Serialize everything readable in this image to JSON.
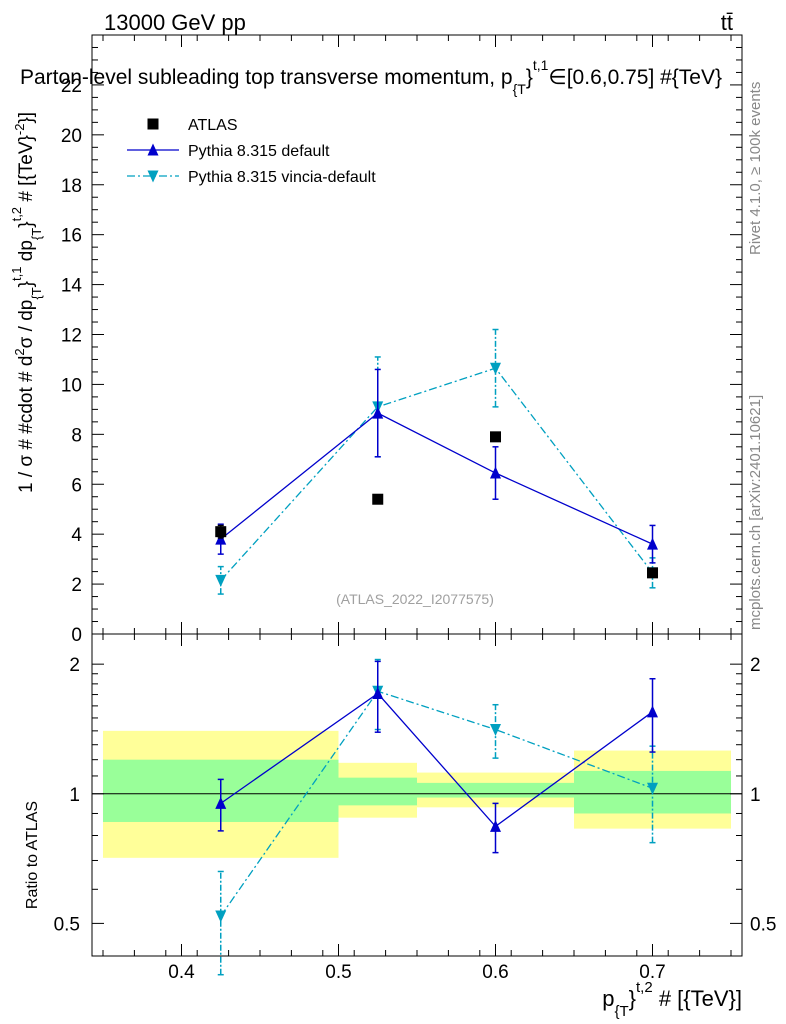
{
  "header": {
    "energy_label": "13000 GeV pp",
    "process_label": "tt̄"
  },
  "side_labels": {
    "rivet": "Rivet 4.1.0, ≥ 100k events",
    "mcplots": "mcplots.cern.ch [arXiv:2401.10621]"
  },
  "watermark": "(ATLAS_2022_I2077575)",
  "chart_data": [
    {
      "type": "scatter",
      "panel": "main",
      "title": "Parton-level subleading top transverse momentum, p}^{t,1}∈[0.6,0.75] #{TeV}",
      "title_parts": {
        "text": "Parton-level subleading top transverse momentum, p",
        "sub": "{T",
        "brace": "}",
        "sup": "t,1",
        "rest": "∈[0.6,0.75] #{TeV}"
      },
      "ylabel": "1 / σ # #cdot # d²σ / dp_{T}^{t,1} dp_{T}^{t,2} # [{TeV}^{-2}]",
      "ylabel_parts": {
        "a": "1 / σ # #cdot # d",
        "sup1": "2",
        "b": "σ / dp",
        "sub2": "{T",
        "c": "}",
        "sup3": "t,1",
        "d": " dp",
        "sub4": "{T",
        "e": "}",
        "sup5": "t,2",
        "f": " # [{TeV}",
        "sup6": "-2",
        "g": "}]"
      },
      "xlim": [
        0.343,
        0.757
      ],
      "ylim": [
        0,
        24
      ],
      "y_ticks": [
        0,
        2,
        4,
        6,
        8,
        10,
        12,
        14,
        16,
        18,
        20,
        22
      ],
      "y_tick_labels": [
        "0",
        "2",
        "4",
        "6",
        "8",
        "10",
        "12",
        "14",
        "16",
        "18",
        "20",
        "22"
      ],
      "legend": {
        "position": "top-left",
        "entries": [
          "ATLAS",
          "Pythia 8.315 default",
          "Pythia 8.315 vincia-default"
        ]
      },
      "series": [
        {
          "name": "ATLAS",
          "color": "#000000",
          "marker": "square",
          "x": [
            0.425,
            0.525,
            0.6,
            0.7
          ],
          "y": [
            4.1,
            5.4,
            7.9,
            2.45
          ],
          "yerr_low": [
            0.25,
            0.15,
            0.15,
            0.15
          ],
          "yerr_high": [
            0.25,
            0.15,
            0.15,
            0.15
          ]
        },
        {
          "name": "Pythia 8.315 default",
          "color": "#0000cc",
          "marker": "triangle-up",
          "linestyle": "solid",
          "x": [
            0.425,
            0.525,
            0.6,
            0.7
          ],
          "y": [
            3.8,
            8.85,
            6.45,
            3.6
          ],
          "yerr_low": [
            0.6,
            1.75,
            1.05,
            0.75
          ],
          "yerr_high": [
            0.6,
            1.75,
            1.05,
            0.75
          ]
        },
        {
          "name": "Pythia 8.315 vincia-default",
          "color": "#00a0c0",
          "marker": "triangle-down",
          "linestyle": "dashdot",
          "x": [
            0.425,
            0.525,
            0.6,
            0.7
          ],
          "y": [
            2.15,
            9.1,
            10.65,
            2.45
          ],
          "yerr_low": [
            0.55,
            2.0,
            1.55,
            0.6
          ],
          "yerr_high": [
            0.55,
            2.0,
            1.55,
            0.6
          ]
        }
      ]
    },
    {
      "type": "scatter",
      "panel": "ratio",
      "ylabel": "Ratio to ATLAS",
      "xlabel": "p_{T}^{t,2} # [{TeV}]",
      "xlabel_parts": {
        "a": "p",
        "sub": "{T",
        "b": "}",
        "sup": "t,2",
        "c": " # [{TeV}]"
      },
      "xlim": [
        0.343,
        0.757
      ],
      "ylim": [
        0.42,
        2.35
      ],
      "y_scale": "log",
      "y_ticks": [
        0.5,
        1,
        2
      ],
      "y_tick_labels": [
        "0.5",
        "1",
        "2"
      ],
      "x_ticks": [
        0.4,
        0.5,
        0.6,
        0.7
      ],
      "x_tick_labels": [
        "0.4",
        "0.5",
        "0.6",
        "0.7"
      ],
      "bands": [
        {
          "x0": 0.35,
          "x1": 0.5,
          "inner": [
            0.86,
            1.2
          ],
          "outer": [
            0.71,
            1.4
          ]
        },
        {
          "x0": 0.5,
          "x1": 0.55,
          "inner": [
            0.94,
            1.09
          ],
          "outer": [
            0.88,
            1.18
          ]
        },
        {
          "x0": 0.55,
          "x1": 0.65,
          "inner": [
            0.98,
            1.06
          ],
          "outer": [
            0.93,
            1.12
          ]
        },
        {
          "x0": 0.65,
          "x1": 0.75,
          "inner": [
            0.9,
            1.13
          ],
          "outer": [
            0.83,
            1.26
          ]
        }
      ],
      "series": [
        {
          "name": "Pythia 8.315 default",
          "color": "#0000cc",
          "marker": "triangle-up",
          "linestyle": "solid",
          "x": [
            0.425,
            0.525,
            0.6,
            0.7
          ],
          "y": [
            0.95,
            1.71,
            0.84,
            1.55
          ],
          "yerr_low": [
            0.13,
            0.32,
            0.11,
            0.3
          ],
          "yerr_high": [
            0.13,
            0.32,
            0.11,
            0.3
          ]
        },
        {
          "name": "Pythia 8.315 vincia-default",
          "color": "#00a0c0",
          "marker": "triangle-down",
          "linestyle": "dashdot",
          "x": [
            0.425,
            0.525,
            0.6,
            0.7
          ],
          "y": [
            0.52,
            1.73,
            1.41,
            1.03
          ],
          "yerr_low": [
            0.14,
            0.32,
            0.2,
            0.26
          ],
          "yerr_high": [
            0.14,
            0.32,
            0.2,
            0.26
          ]
        }
      ]
    }
  ]
}
